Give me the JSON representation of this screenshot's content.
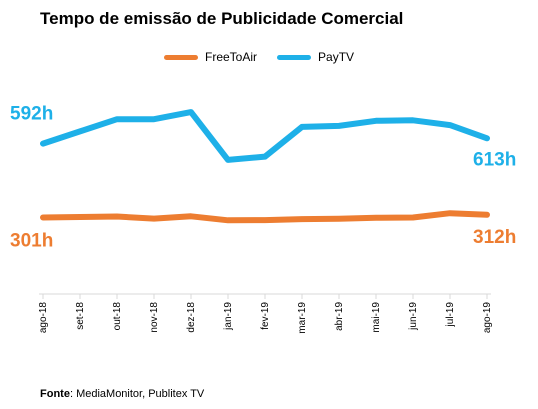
{
  "chart_data": {
    "type": "line",
    "title": "Tempo de emissão de Publicidade Comercial",
    "categories": [
      "ago-18",
      "set-18",
      "out-18",
      "nov-18",
      "dez-18",
      "jan-19",
      "fev-19",
      "mar-19",
      "abr-19",
      "mai-19",
      "jun-19",
      "jul-19",
      "ago-19"
    ],
    "series": [
      {
        "name": "FreeToAir",
        "color": "#ED7D31",
        "values": [
          301,
          303,
          305,
          297,
          306,
          290,
          291,
          295,
          296,
          300,
          301,
          318,
          312
        ]
      },
      {
        "name": "PayTV",
        "color": "#1EB0E8",
        "values": [
          592,
          640,
          688,
          688,
          716,
          528,
          541,
          658,
          662,
          682,
          684,
          665,
          613
        ]
      }
    ],
    "data_labels": [
      {
        "series": "PayTV",
        "index": 0,
        "text": "592h"
      },
      {
        "series": "PayTV",
        "index": 12,
        "text": "613h"
      },
      {
        "series": "FreeToAir",
        "index": 0,
        "text": "301h"
      },
      {
        "series": "FreeToAir",
        "index": 12,
        "text": "312h"
      }
    ],
    "xlabel": "",
    "ylabel": "",
    "ylim": [
      0,
      1000
    ],
    "grid": false,
    "legend": "top-center"
  },
  "source": {
    "label": "Fonte",
    "text": ": MediaMonitor, Publitex TV"
  }
}
